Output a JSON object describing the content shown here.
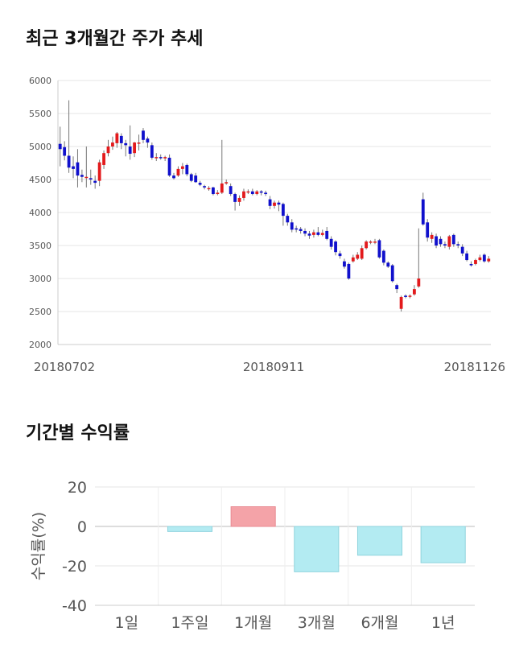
{
  "chart_data": [
    {
      "type": "candlestick",
      "title": "최근 3개월간 주가 추세",
      "y_ticks": [
        2000,
        2500,
        3000,
        3500,
        4000,
        4500,
        5000,
        5500,
        6000
      ],
      "ylim": [
        2000,
        6000
      ],
      "x_tick_labels": [
        "20180702",
        "20180911",
        "20181126"
      ],
      "up_color": "#e31a1c",
      "down_color": "#1010cc",
      "candles": [
        [
          5040,
          4960,
          5300,
          4700
        ],
        [
          4990,
          4860,
          5080,
          4790
        ],
        [
          4860,
          4680,
          5700,
          4600
        ],
        [
          4700,
          4660,
          4850,
          4520
        ],
        [
          4760,
          4560,
          4960,
          4380
        ],
        [
          4570,
          4540,
          4650,
          4460
        ],
        [
          4540,
          4540,
          5000,
          4380
        ],
        [
          4520,
          4500,
          4650,
          4420
        ],
        [
          4480,
          4450,
          4560,
          4360
        ],
        [
          4480,
          4760,
          4800,
          4400
        ],
        [
          4720,
          4900,
          4940,
          4660
        ],
        [
          4900,
          5000,
          5100,
          4850
        ],
        [
          5000,
          5060,
          5150,
          4950
        ],
        [
          5050,
          5200,
          5220,
          4980
        ],
        [
          5160,
          5050,
          5200,
          4960
        ],
        [
          5050,
          5020,
          5100,
          4850
        ],
        [
          5000,
          4890,
          5320,
          4800
        ],
        [
          4900,
          5060,
          5070,
          4840
        ],
        [
          5050,
          5060,
          5180,
          4940
        ],
        [
          5240,
          5100,
          5280,
          5050
        ],
        [
          5120,
          5060,
          5150,
          4980
        ],
        [
          5020,
          4830,
          5060,
          4800
        ],
        [
          4830,
          4840,
          4900,
          4780
        ],
        [
          4840,
          4830,
          4880,
          4800
        ],
        [
          4820,
          4840,
          4860,
          4780
        ],
        [
          4830,
          4560,
          4880,
          4540
        ],
        [
          4560,
          4520,
          4600,
          4500
        ],
        [
          4560,
          4660,
          4700,
          4540
        ],
        [
          4660,
          4700,
          4750,
          4580
        ],
        [
          4720,
          4580,
          4740,
          4550
        ],
        [
          4580,
          4480,
          4600,
          4460
        ],
        [
          4560,
          4460,
          4600,
          4450
        ],
        [
          4450,
          4420,
          4480,
          4400
        ],
        [
          4400,
          4380,
          4420,
          4350
        ],
        [
          4360,
          4370,
          4400,
          4330
        ],
        [
          4380,
          4280,
          4390,
          4260
        ],
        [
          4280,
          4300,
          4340,
          4260
        ],
        [
          4300,
          4440,
          5100,
          4280
        ],
        [
          4440,
          4460,
          4500,
          4420
        ],
        [
          4400,
          4280,
          4440,
          4250
        ],
        [
          4280,
          4160,
          4300,
          4030
        ],
        [
          4160,
          4220,
          4260,
          4100
        ],
        [
          4220,
          4320,
          4360,
          4180
        ],
        [
          4320,
          4320,
          4350,
          4280
        ],
        [
          4320,
          4280,
          4360,
          4260
        ],
        [
          4280,
          4320,
          4340,
          4260
        ],
        [
          4320,
          4300,
          4340,
          4260
        ],
        [
          4300,
          4280,
          4330,
          4250
        ],
        [
          4200,
          4100,
          4250,
          4050
        ],
        [
          4100,
          4150,
          4180,
          4060
        ],
        [
          4150,
          4120,
          4180,
          4020
        ],
        [
          4130,
          3950,
          4150,
          3800
        ],
        [
          3950,
          3850,
          3980,
          3800
        ],
        [
          3850,
          3740,
          3900,
          3700
        ],
        [
          3760,
          3750,
          3800,
          3700
        ],
        [
          3750,
          3720,
          3780,
          3680
        ],
        [
          3720,
          3680,
          3760,
          3640
        ],
        [
          3680,
          3650,
          3720,
          3600
        ],
        [
          3660,
          3700,
          3740,
          3620
        ],
        [
          3700,
          3660,
          3780,
          3640
        ],
        [
          3660,
          3690,
          3740,
          3640
        ],
        [
          3720,
          3600,
          3780,
          3580
        ],
        [
          3600,
          3480,
          3640,
          3440
        ],
        [
          3560,
          3400,
          3580,
          3350
        ],
        [
          3380,
          3340,
          3420,
          3300
        ],
        [
          3260,
          3180,
          3300,
          3150
        ],
        [
          3220,
          3000,
          3240,
          2980
        ],
        [
          3260,
          3320,
          3360,
          3240
        ],
        [
          3300,
          3360,
          3400,
          3280
        ],
        [
          3300,
          3460,
          3500,
          3280
        ],
        [
          3460,
          3560,
          3580,
          3440
        ],
        [
          3560,
          3560,
          3580,
          3520
        ],
        [
          3560,
          3560,
          3600,
          3520
        ],
        [
          3580,
          3320,
          3600,
          3300
        ],
        [
          3420,
          3240,
          3440,
          3200
        ],
        [
          3240,
          3180,
          3260,
          3160
        ],
        [
          3200,
          2960,
          3220,
          2940
        ],
        [
          2900,
          2840,
          2920,
          2780
        ],
        [
          2540,
          2720,
          2740,
          2500
        ],
        [
          2740,
          2720,
          2760,
          2700
        ],
        [
          2740,
          2740,
          2760,
          2700
        ],
        [
          2760,
          2840,
          2900,
          2740
        ],
        [
          2880,
          3000,
          3760,
          2860
        ],
        [
          4200,
          3820,
          4300,
          3800
        ],
        [
          3850,
          3620,
          3900,
          3560
        ],
        [
          3600,
          3660,
          3700,
          3540
        ],
        [
          3640,
          3500,
          3680,
          3460
        ],
        [
          3600,
          3520,
          3640,
          3480
        ],
        [
          3520,
          3500,
          3560,
          3460
        ],
        [
          3480,
          3640,
          3660,
          3440
        ],
        [
          3660,
          3520,
          3680,
          3480
        ],
        [
          3520,
          3500,
          3560,
          3460
        ],
        [
          3480,
          3380,
          3520,
          3340
        ],
        [
          3380,
          3280,
          3420,
          3260
        ],
        [
          3220,
          3200,
          3260,
          3180
        ],
        [
          3220,
          3280,
          3300,
          3200
        ],
        [
          3280,
          3320,
          3360,
          3260
        ],
        [
          3360,
          3260,
          3380,
          3240
        ],
        [
          3260,
          3300,
          3340,
          3240
        ]
      ]
    },
    {
      "type": "bar",
      "title": "기간별 수익률",
      "ylabel": "수익률(%)",
      "categories": [
        "1일",
        "1주일",
        "1개월",
        "3개월",
        "6개월",
        "1년"
      ],
      "values": [
        0,
        -2.6,
        10.0,
        -23.0,
        -14.6,
        -18.4
      ],
      "y_ticks": [
        20,
        0,
        -20,
        -40
      ],
      "ylim": [
        -40,
        20
      ],
      "positive_color": "#f4a3a8",
      "negative_color": "#b3ebf2"
    }
  ]
}
